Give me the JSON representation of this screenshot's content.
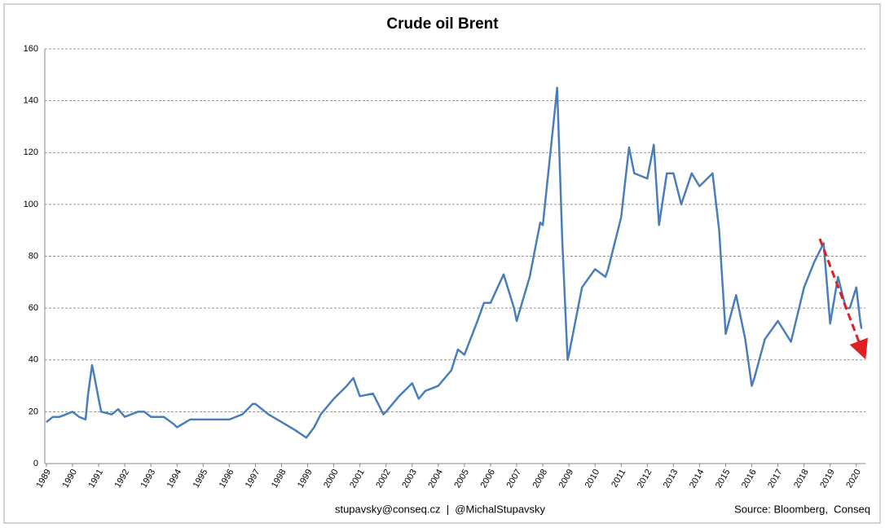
{
  "chart_data": {
    "type": "line",
    "title": "Crude oil Brent",
    "x": [
      1989.0,
      1989.25,
      1989.5,
      1989.75,
      1990.0,
      1990.25,
      1990.5,
      1990.6,
      1990.75,
      1990.85,
      1991.0,
      1991.1,
      1991.5,
      1991.75,
      1992.0,
      1992.5,
      1992.75,
      1993.0,
      1993.5,
      1993.9,
      1994.0,
      1994.5,
      1995.0,
      1995.5,
      1996.0,
      1996.5,
      1996.9,
      1997.0,
      1997.5,
      1998.0,
      1998.5,
      1998.95,
      1999.25,
      1999.5,
      2000.0,
      2000.5,
      2000.75,
      2001.0,
      2001.5,
      2001.9,
      2002.0,
      2002.5,
      2003.0,
      2003.25,
      2003.5,
      2004.0,
      2004.5,
      2004.75,
      2005.0,
      2005.5,
      2005.75,
      2006.0,
      2006.5,
      2006.9,
      2007.0,
      2007.5,
      2007.9,
      2008.0,
      2008.5,
      2008.55,
      2008.75,
      2008.95,
      2009.0,
      2009.5,
      2010.0,
      2010.4,
      2010.5,
      2011.0,
      2011.3,
      2011.5,
      2012.0,
      2012.25,
      2012.45,
      2012.75,
      2013.0,
      2013.3,
      2013.7,
      2014.0,
      2014.5,
      2014.75,
      2015.0,
      2015.4,
      2015.75,
      2016.0,
      2016.1,
      2016.5,
      2017.0,
      2017.5,
      2018.0,
      2018.4,
      2018.75,
      2019.0,
      2019.3,
      2019.6,
      2019.75,
      2020.0,
      2020.15,
      2020.2
    ],
    "series": [
      {
        "name": "Brent",
        "color": "#4a7ebb",
        "values": [
          16,
          18,
          18,
          19,
          20,
          18,
          17,
          27,
          38,
          33,
          25,
          20,
          19,
          21,
          18,
          20,
          20,
          18,
          18,
          15,
          14,
          17,
          17,
          17,
          17,
          19,
          23,
          23,
          19,
          16,
          13,
          10,
          14,
          19,
          25,
          30,
          33,
          26,
          27,
          19,
          20,
          26,
          31,
          25,
          28,
          30,
          36,
          44,
          42,
          55,
          62,
          62,
          73,
          60,
          55,
          72,
          93,
          92,
          140,
          145,
          85,
          40,
          42,
          68,
          75,
          72,
          75,
          95,
          122,
          112,
          110,
          123,
          92,
          112,
          112,
          100,
          112,
          107,
          112,
          90,
          50,
          65,
          48,
          30,
          33,
          48,
          55,
          47,
          68,
          78,
          85,
          54,
          72,
          60,
          60,
          68,
          55,
          52
        ]
      }
    ],
    "xlim": [
      1988.94,
      2020.35
    ],
    "xticks": [
      1989,
      1990,
      1991,
      1992,
      1993,
      1994,
      1995,
      1996,
      1997,
      1998,
      1999,
      2000,
      2001,
      2002,
      2003,
      2004,
      2005,
      2006,
      2007,
      2008,
      2009,
      2010,
      2011,
      2012,
      2013,
      2014,
      2015,
      2016,
      2017,
      2018,
      2019,
      2020
    ],
    "ylim": [
      0,
      160
    ],
    "yticks": [
      0,
      20,
      40,
      60,
      80,
      100,
      120,
      140,
      160
    ],
    "grid": true,
    "footer": "stupavsky@conseq.cz  |  @MichalStupavsky",
    "source": "Source: Bloomberg,  Conseq"
  }
}
